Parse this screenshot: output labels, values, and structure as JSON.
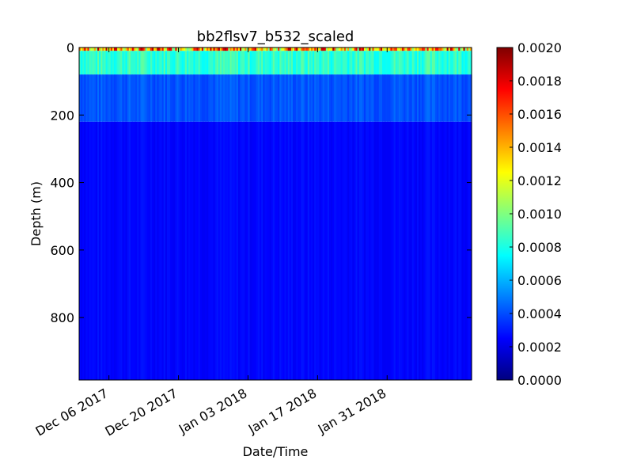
{
  "chart_data": {
    "type": "heatmap",
    "title": "bb2flsv7_b532_scaled",
    "xlabel": "Date/Time",
    "ylabel": "Depth (m)",
    "colormap": "jet",
    "x_range": [
      "2017-11-30",
      "2018-02-17"
    ],
    "ylim": [
      0,
      985
    ],
    "y_inverted": true,
    "x_ticks": [
      {
        "date": "2017-12-06",
        "label": "Dec 06 2017"
      },
      {
        "date": "2017-12-20",
        "label": "Dec 20 2017"
      },
      {
        "date": "2018-01-03",
        "label": "Jan 03 2018"
      },
      {
        "date": "2018-01-17",
        "label": "Jan 17 2018"
      },
      {
        "date": "2018-01-31",
        "label": "Jan 31 2018"
      }
    ],
    "y_ticks": [
      {
        "value": 0,
        "label": "0"
      },
      {
        "value": 200,
        "label": "200"
      },
      {
        "value": 400,
        "label": "400"
      },
      {
        "value": 600,
        "label": "600"
      },
      {
        "value": 800,
        "label": "800"
      }
    ],
    "colorbar": {
      "min": 0.0,
      "max": 0.002,
      "ticks": [
        {
          "value": 0.0,
          "label": "0.0000"
        },
        {
          "value": 0.0002,
          "label": "0.0002"
        },
        {
          "value": 0.0004,
          "label": "0.0004"
        },
        {
          "value": 0.0006,
          "label": "0.0006"
        },
        {
          "value": 0.0008,
          "label": "0.0008"
        },
        {
          "value": 0.001,
          "label": "0.0010"
        },
        {
          "value": 0.0012,
          "label": "0.0012"
        },
        {
          "value": 0.0014,
          "label": "0.0014"
        },
        {
          "value": 0.0016,
          "label": "0.0016"
        },
        {
          "value": 0.0018,
          "label": "0.0018"
        },
        {
          "value": 0.002,
          "label": "0.0020"
        }
      ]
    },
    "depth_profile": [
      {
        "depth_start": 0,
        "depth_end": 10,
        "value": 0.0012
      },
      {
        "depth_start": 10,
        "depth_end": 80,
        "value": 0.00085
      },
      {
        "depth_start": 80,
        "depth_end": 220,
        "value": 0.00042
      },
      {
        "depth_start": 220,
        "depth_end": 985,
        "value": 0.00026
      }
    ]
  }
}
